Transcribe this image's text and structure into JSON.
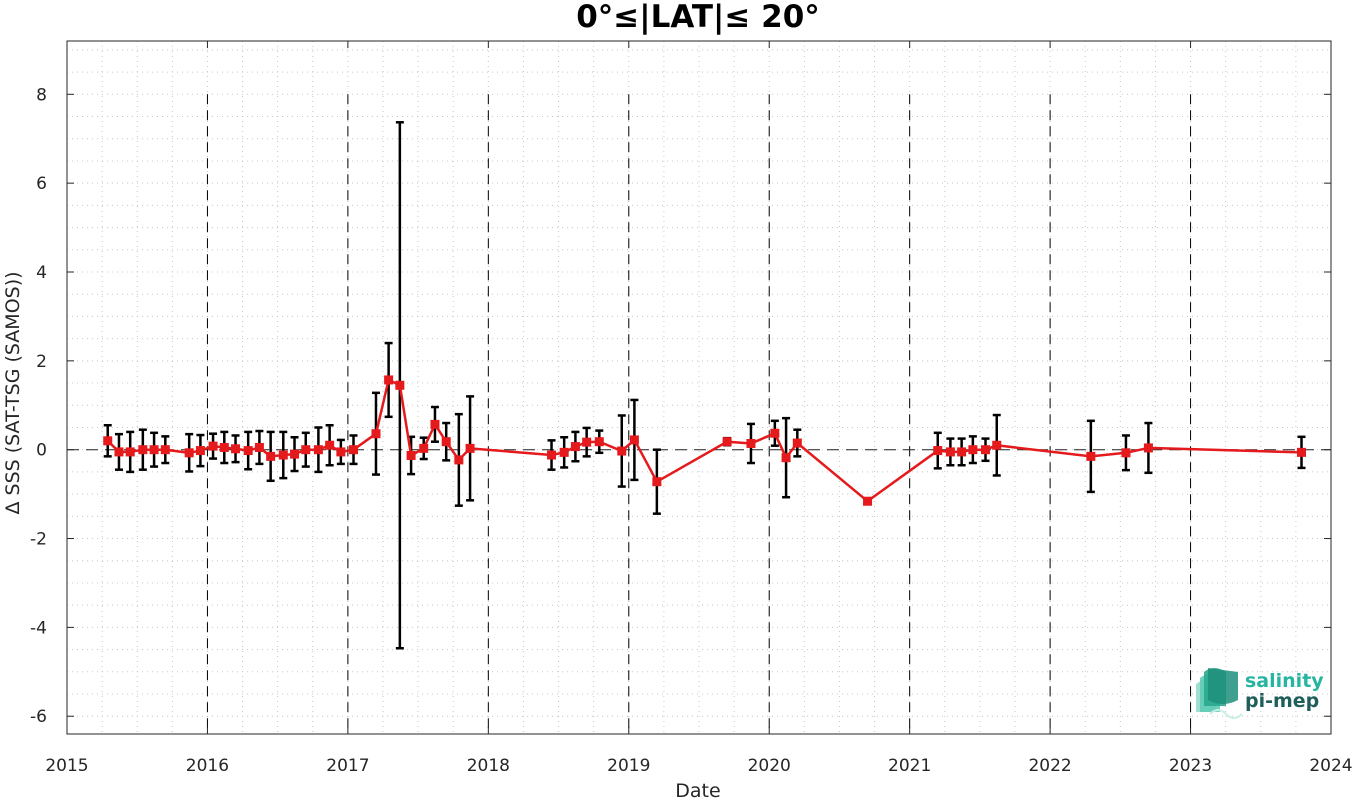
{
  "chart_data": {
    "type": "line",
    "title": "0°≤|LAT|≤ 20°",
    "xlabel": "Date",
    "ylabel": "Δ SSS (SAT-TSG (SAMOS))",
    "xlim": [
      2015.0,
      2024.0
    ],
    "ylim": [
      -6.4,
      9.2
    ],
    "x_ticks": [
      2015,
      2016,
      2017,
      2018,
      2019,
      2020,
      2021,
      2022,
      2023,
      2024
    ],
    "x_tick_labels": [
      "2015",
      "2016",
      "2017",
      "2018",
      "2019",
      "2020",
      "2021",
      "2022",
      "2023",
      "2024"
    ],
    "y_ticks": [
      -6,
      -4,
      -2,
      0,
      2,
      4,
      6,
      8
    ],
    "y_tick_labels": [
      "-6",
      "-4",
      "-2",
      "0",
      "2",
      "4",
      "6",
      "8"
    ],
    "grid": "minor dotted",
    "year_separators": "dashed vertical lines at year boundaries",
    "zero_line": "dashed horizontal line at 0",
    "series": [
      {
        "color": "#e41a1c",
        "marker": "square",
        "error_bar_color": "#000000",
        "points": [
          {
            "x": 2015.29,
            "y": 0.2,
            "err": 0.35
          },
          {
            "x": 2015.37,
            "y": -0.05,
            "err": 0.4
          },
          {
            "x": 2015.45,
            "y": -0.05,
            "err": 0.45
          },
          {
            "x": 2015.54,
            "y": 0.0,
            "err": 0.45
          },
          {
            "x": 2015.62,
            "y": 0.0,
            "err": 0.38
          },
          {
            "x": 2015.7,
            "y": 0.0,
            "err": 0.3
          },
          {
            "x": 2015.87,
            "y": -0.07,
            "err": 0.42
          },
          {
            "x": 2015.95,
            "y": -0.02,
            "err": 0.35
          },
          {
            "x": 2016.04,
            "y": 0.08,
            "err": 0.28
          },
          {
            "x": 2016.12,
            "y": 0.05,
            "err": 0.35
          },
          {
            "x": 2016.2,
            "y": 0.02,
            "err": 0.3
          },
          {
            "x": 2016.29,
            "y": -0.02,
            "err": 0.42
          },
          {
            "x": 2016.37,
            "y": 0.05,
            "err": 0.37
          },
          {
            "x": 2016.45,
            "y": -0.15,
            "err": 0.55
          },
          {
            "x": 2016.54,
            "y": -0.12,
            "err": 0.52
          },
          {
            "x": 2016.62,
            "y": -0.1,
            "err": 0.38
          },
          {
            "x": 2016.7,
            "y": 0.0,
            "err": 0.38
          },
          {
            "x": 2016.79,
            "y": 0.0,
            "err": 0.5
          },
          {
            "x": 2016.87,
            "y": 0.1,
            "err": 0.45
          },
          {
            "x": 2016.95,
            "y": -0.05,
            "err": 0.27
          },
          {
            "x": 2017.04,
            "y": 0.0,
            "err": 0.32
          },
          {
            "x": 2017.2,
            "y": 0.36,
            "err": 0.92
          },
          {
            "x": 2017.29,
            "y": 1.57,
            "err": 0.83
          },
          {
            "x": 2017.37,
            "y": 1.45,
            "err": 5.92
          },
          {
            "x": 2017.45,
            "y": -0.13,
            "err": 0.42
          },
          {
            "x": 2017.54,
            "y": 0.03,
            "err": 0.24
          },
          {
            "x": 2017.62,
            "y": 0.57,
            "err": 0.39
          },
          {
            "x": 2017.7,
            "y": 0.18,
            "err": 0.42
          },
          {
            "x": 2017.79,
            "y": -0.23,
            "err": 1.03
          },
          {
            "x": 2017.87,
            "y": 0.03,
            "err": 1.17
          },
          {
            "x": 2018.45,
            "y": -0.12,
            "err": 0.33
          },
          {
            "x": 2018.54,
            "y": -0.06,
            "err": 0.34
          },
          {
            "x": 2018.62,
            "y": 0.07,
            "err": 0.33
          },
          {
            "x": 2018.7,
            "y": 0.17,
            "err": 0.32
          },
          {
            "x": 2018.79,
            "y": 0.18,
            "err": 0.25
          },
          {
            "x": 2018.95,
            "y": -0.03,
            "err": 0.8
          },
          {
            "x": 2019.04,
            "y": 0.22,
            "err": 0.9
          },
          {
            "x": 2019.2,
            "y": -0.72,
            "err": 0.72
          },
          {
            "x": 2019.7,
            "y": 0.18,
            "err": 0.08
          },
          {
            "x": 2019.87,
            "y": 0.14,
            "err": 0.44
          },
          {
            "x": 2020.04,
            "y": 0.37,
            "err": 0.28
          },
          {
            "x": 2020.12,
            "y": -0.18,
            "err": 0.89
          },
          {
            "x": 2020.2,
            "y": 0.15,
            "err": 0.3
          },
          {
            "x": 2020.7,
            "y": -1.16,
            "err": 0.05
          },
          {
            "x": 2021.2,
            "y": -0.02,
            "err": 0.4
          },
          {
            "x": 2021.29,
            "y": -0.05,
            "err": 0.3
          },
          {
            "x": 2021.37,
            "y": -0.05,
            "err": 0.3
          },
          {
            "x": 2021.45,
            "y": 0.0,
            "err": 0.3
          },
          {
            "x": 2021.54,
            "y": 0.0,
            "err": 0.25
          },
          {
            "x": 2021.62,
            "y": 0.1,
            "err": 0.68
          },
          {
            "x": 2022.29,
            "y": -0.15,
            "err": 0.8
          },
          {
            "x": 2022.54,
            "y": -0.07,
            "err": 0.39
          },
          {
            "x": 2022.7,
            "y": 0.04,
            "err": 0.56
          },
          {
            "x": 2023.79,
            "y": -0.06,
            "err": 0.35
          }
        ]
      }
    ]
  },
  "logo": {
    "line1": "salinity",
    "line2": "pi-mep",
    "color1": "#26b5a0",
    "color2": "#1f5f5a"
  }
}
